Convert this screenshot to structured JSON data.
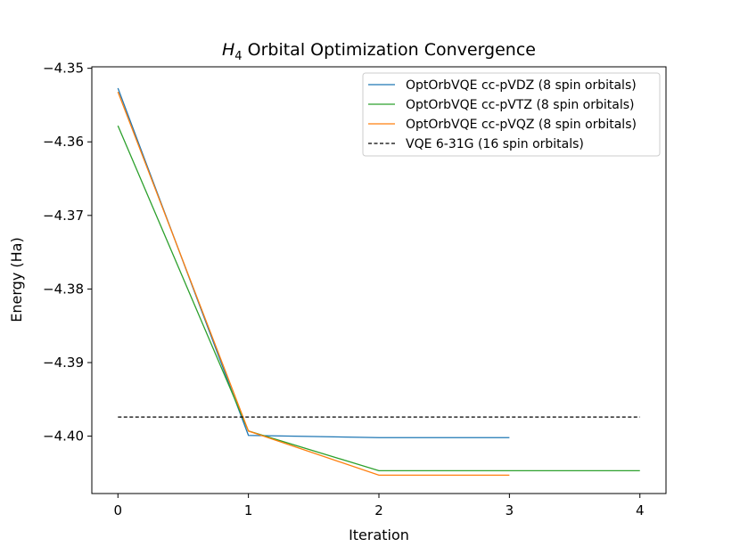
{
  "chart_data": {
    "type": "line",
    "title_symbol": "H",
    "title_subscript": "4",
    "title_rest": " Orbital Optimization Convergence",
    "xlabel": "Iteration",
    "ylabel": "Energy (Ha)",
    "xlim": [
      -0.2,
      4.2
    ],
    "ylim": [
      -4.4078,
      -4.3498
    ],
    "xticks": [
      0,
      1,
      2,
      3,
      4
    ],
    "xtick_labels": [
      "0",
      "1",
      "2",
      "3",
      "4"
    ],
    "yticks": [
      -4.35,
      -4.36,
      -4.37,
      -4.38,
      -4.39,
      -4.4
    ],
    "ytick_labels": [
      "−4.35",
      "−4.36",
      "−4.37",
      "−4.38",
      "−4.39",
      "−4.40"
    ],
    "grid": false,
    "legend_position": "top-right",
    "series": [
      {
        "name": "OptOrbVQE cc-pVDZ (8 spin orbitals)",
        "color": "#1f77b4",
        "style": "solid",
        "x": [
          0,
          1,
          2,
          3
        ],
        "y": [
          -4.3527,
          -4.3999,
          -4.4002,
          -4.4002
        ]
      },
      {
        "name": "OptOrbVQE cc-pVTZ (8 spin orbitals)",
        "color": "#2ca02c",
        "style": "solid",
        "x": [
          0,
          1,
          2,
          3,
          4
        ],
        "y": [
          -4.3578,
          -4.3993,
          -4.4047,
          -4.4047,
          -4.4047
        ]
      },
      {
        "name": "OptOrbVQE cc-pVQZ (8 spin orbitals)",
        "color": "#ff7f0e",
        "style": "solid",
        "x": [
          0,
          1,
          2,
          3
        ],
        "y": [
          -4.3532,
          -4.3993,
          -4.4053,
          -4.4053
        ]
      },
      {
        "name": "VQE 6-31G (16 spin orbitals)",
        "color": "#000000",
        "style": "dashed",
        "x": [
          0,
          4
        ],
        "y": [
          -4.3974,
          -4.3974
        ]
      }
    ]
  }
}
